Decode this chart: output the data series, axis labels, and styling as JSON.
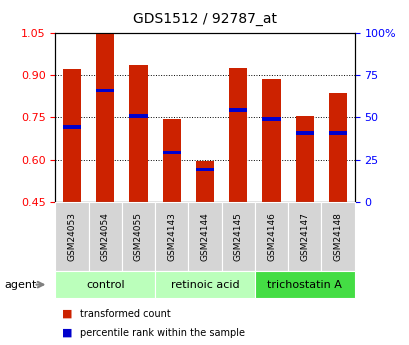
{
  "title": "GDS1512 / 92787_at",
  "samples": [
    "GSM24053",
    "GSM24054",
    "GSM24055",
    "GSM24143",
    "GSM24144",
    "GSM24145",
    "GSM24146",
    "GSM24147",
    "GSM24148"
  ],
  "groups": [
    {
      "label": "control",
      "indices": [
        0,
        1,
        2
      ],
      "color": "#bbffbb"
    },
    {
      "label": "retinoic acid",
      "indices": [
        3,
        4,
        5
      ],
      "color": "#bbffbb"
    },
    {
      "label": "trichostatin A",
      "indices": [
        6,
        7,
        8
      ],
      "color": "#44dd44"
    }
  ],
  "bar_bottom": 0.45,
  "bar_tops": [
    0.92,
    1.05,
    0.935,
    0.745,
    0.595,
    0.925,
    0.885,
    0.755,
    0.835
  ],
  "percentile_values": [
    0.715,
    0.845,
    0.755,
    0.625,
    0.565,
    0.775,
    0.745,
    0.695,
    0.695
  ],
  "ylim_left": [
    0.45,
    1.05
  ],
  "ylim_right": [
    0,
    100
  ],
  "yticks_left": [
    0.45,
    0.6,
    0.75,
    0.9,
    1.05
  ],
  "yticks_right_vals": [
    0,
    25,
    50,
    75,
    100
  ],
  "yticks_right_labels": [
    "0",
    "25",
    "50",
    "75",
    "100%"
  ],
  "bar_color": "#cc2200",
  "percentile_color": "#0000cc",
  "bar_width": 0.55,
  "pct_bar_height": 0.013,
  "legend_items": [
    {
      "label": "transformed count",
      "color": "#cc2200"
    },
    {
      "label": "percentile rank within the sample",
      "color": "#0000cc"
    }
  ]
}
